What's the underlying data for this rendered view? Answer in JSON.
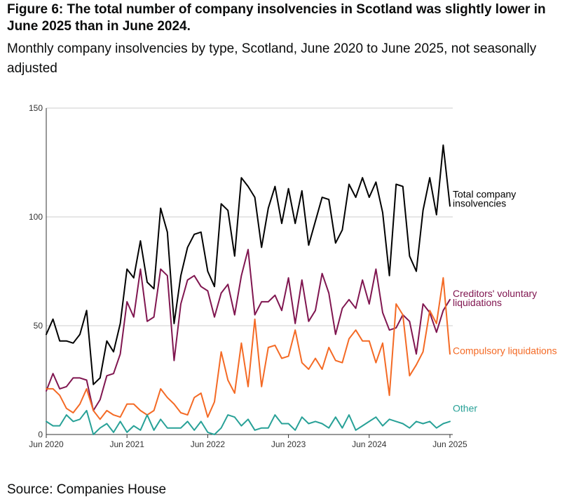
{
  "header": {
    "title": "Figure 6: The total number of company insolvencies in Scotland was slightly lower in June 2025 than in June 2024.",
    "subtitle": "Monthly company insolvencies by type, Scotland, June 2020 to June 2025, not seasonally adjusted"
  },
  "footer": {
    "source": "Source: Companies House"
  },
  "chart_data": {
    "type": "line",
    "title": "Figure 6: The total number of company insolvencies in Scotland was slightly lower in June 2025 than in June 2024.",
    "subtitle": "Monthly company insolvencies by type, Scotland, June 2020 to June 2025, not seasonally adjusted",
    "xlabel": "",
    "ylabel": "",
    "x_start": "Jun 2020",
    "x_end": "Jun 2025",
    "x_ticks": [
      "Jun 2020",
      "Jun 2021",
      "Jun 2022",
      "Jun 2023",
      "Jun 2024",
      "Jun 2025"
    ],
    "y_ticks": [
      0,
      50,
      100,
      150
    ],
    "ylim": [
      0,
      150
    ],
    "grid": "horizontal",
    "legend": "direct labels at right end of lines",
    "series": [
      {
        "name": "Total company insolvencies",
        "label_lines": [
          "Total company",
          "insolvencies"
        ],
        "color": "#000000",
        "values": [
          46,
          53,
          43,
          43,
          42,
          46,
          57,
          23,
          26,
          43,
          38,
          51,
          76,
          72,
          89,
          70,
          67,
          104,
          93,
          51,
          73,
          86,
          92,
          93,
          75,
          68,
          106,
          103,
          82,
          118,
          114,
          109,
          86,
          104,
          114,
          97,
          113,
          97,
          112,
          87,
          98,
          109,
          108,
          88,
          94,
          115,
          109,
          118,
          109,
          116,
          102,
          73,
          115,
          114,
          82,
          75,
          103,
          118,
          101,
          133,
          105
        ]
      },
      {
        "name": "Creditors' voluntary liquidations",
        "label_lines": [
          "Creditors' voluntary",
          "liquidations"
        ],
        "color": "#801650",
        "values": [
          20,
          28,
          21,
          22,
          26,
          26,
          25,
          11,
          16,
          27,
          28,
          37,
          61,
          54,
          76,
          52,
          54,
          76,
          73,
          34,
          60,
          71,
          73,
          68,
          66,
          54,
          65,
          69,
          55,
          73,
          85,
          55,
          61,
          61,
          64,
          57,
          72,
          51,
          71,
          52,
          57,
          74,
          65,
          46,
          58,
          62,
          58,
          71,
          60,
          76,
          56,
          48,
          49,
          55,
          52,
          37,
          60,
          56,
          47,
          57,
          62
        ]
      },
      {
        "name": "Compulsory liquidations",
        "label_lines": [
          "Compulsory liquidations"
        ],
        "color": "#f46a25",
        "values": [
          21,
          21,
          18,
          12,
          10,
          14,
          21,
          11,
          7,
          11,
          9,
          8,
          14,
          14,
          11,
          9,
          11,
          21,
          17,
          14,
          10,
          9,
          17,
          19,
          8,
          15,
          38,
          25,
          19,
          42,
          22,
          53,
          22,
          40,
          41,
          35,
          36,
          48,
          33,
          30,
          35,
          30,
          40,
          34,
          33,
          44,
          48,
          43,
          43,
          33,
          42,
          18,
          60,
          55,
          27,
          32,
          38,
          57,
          51,
          72,
          37
        ]
      },
      {
        "name": "Other",
        "label_lines": [
          "Other"
        ],
        "color": "#28a197",
        "values": [
          6,
          4,
          4,
          9,
          6,
          7,
          11,
          0,
          3,
          5,
          1,
          6,
          1,
          4,
          2,
          9,
          2,
          7,
          3,
          3,
          3,
          6,
          2,
          6,
          1,
          0,
          3,
          9,
          8,
          4,
          7,
          2,
          3,
          3,
          9,
          5,
          5,
          2,
          8,
          5,
          6,
          5,
          3,
          8,
          3,
          9,
          2,
          4,
          6,
          8,
          4,
          7,
          6,
          5,
          3,
          6,
          5,
          6,
          3,
          5,
          6
        ]
      }
    ]
  }
}
